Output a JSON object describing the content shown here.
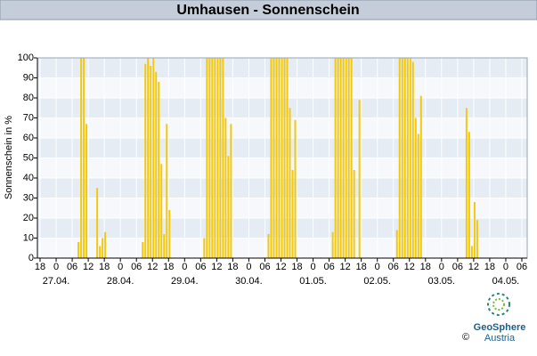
{
  "header": {
    "title": "Umhausen - Sonnenschein"
  },
  "chart_data": {
    "type": "bar",
    "ylabel": "Sonnenschein in %",
    "color": "#f2c90f",
    "grid": true,
    "xlim": [
      -1,
      182
    ],
    "ylim": [
      0,
      100
    ],
    "yticks": [
      0,
      10,
      20,
      30,
      40,
      50,
      60,
      70,
      80,
      90,
      100
    ],
    "xticks": [
      {
        "value": 0,
        "label": "18"
      },
      {
        "value": 6,
        "label": "0"
      },
      {
        "value": 12,
        "label": "06"
      },
      {
        "value": 18,
        "label": "12"
      },
      {
        "value": 24,
        "label": "18"
      },
      {
        "value": 30,
        "label": "0"
      },
      {
        "value": 36,
        "label": "06"
      },
      {
        "value": 42,
        "label": "12"
      },
      {
        "value": 48,
        "label": "18"
      },
      {
        "value": 54,
        "label": "0"
      },
      {
        "value": 60,
        "label": "06"
      },
      {
        "value": 66,
        "label": "12"
      },
      {
        "value": 72,
        "label": "18"
      },
      {
        "value": 78,
        "label": "0"
      },
      {
        "value": 84,
        "label": "06"
      },
      {
        "value": 90,
        "label": "12"
      },
      {
        "value": 96,
        "label": "18"
      },
      {
        "value": 102,
        "label": "0"
      },
      {
        "value": 108,
        "label": "06"
      },
      {
        "value": 114,
        "label": "12"
      },
      {
        "value": 120,
        "label": "18"
      },
      {
        "value": 126,
        "label": "0"
      },
      {
        "value": 132,
        "label": "06"
      },
      {
        "value": 138,
        "label": "12"
      },
      {
        "value": 144,
        "label": "18"
      },
      {
        "value": 150,
        "label": "0"
      },
      {
        "value": 156,
        "label": "06"
      },
      {
        "value": 162,
        "label": "12"
      },
      {
        "value": 168,
        "label": "18"
      },
      {
        "value": 174,
        "label": "0"
      },
      {
        "value": 180,
        "label": "06"
      }
    ],
    "xdates": [
      {
        "value": 6,
        "label": "27.04."
      },
      {
        "value": 30,
        "label": "28.04."
      },
      {
        "value": 54,
        "label": "29.04."
      },
      {
        "value": 78,
        "label": "30.04."
      },
      {
        "value": 102,
        "label": "01.05."
      },
      {
        "value": 126,
        "label": "02.05."
      },
      {
        "value": 150,
        "label": "03.05."
      },
      {
        "value": 174,
        "label": "04.05."
      }
    ],
    "x": [
      14,
      15,
      16,
      17,
      21,
      22,
      23,
      24,
      38,
      39,
      40,
      41,
      42,
      43,
      44,
      45,
      46,
      47,
      48,
      61,
      62,
      63,
      64,
      65,
      66,
      67,
      68,
      69,
      70,
      71,
      85,
      86,
      87,
      88,
      89,
      90,
      91,
      92,
      93,
      94,
      95,
      109,
      110,
      111,
      112,
      113,
      114,
      115,
      116,
      117,
      119,
      133,
      134,
      135,
      136,
      137,
      138,
      139,
      140,
      141,
      142,
      159,
      160,
      161,
      162,
      163
    ],
    "values": [
      8,
      100,
      100,
      67,
      35,
      6,
      10,
      13,
      8,
      97,
      100,
      96,
      100,
      93,
      88,
      47,
      12,
      67,
      24,
      10,
      100,
      100,
      100,
      100,
      100,
      100,
      100,
      70,
      51,
      67,
      12,
      100,
      100,
      100,
      100,
      100,
      100,
      100,
      75,
      44,
      69,
      13,
      100,
      100,
      100,
      100,
      100,
      100,
      100,
      44,
      79,
      14,
      100,
      100,
      100,
      100,
      100,
      98,
      70,
      62,
      81,
      75,
      63,
      6,
      28,
      19
    ]
  },
  "logo": {
    "name": "GeoSphere",
    "country": "Austria",
    "copyright": "©"
  }
}
